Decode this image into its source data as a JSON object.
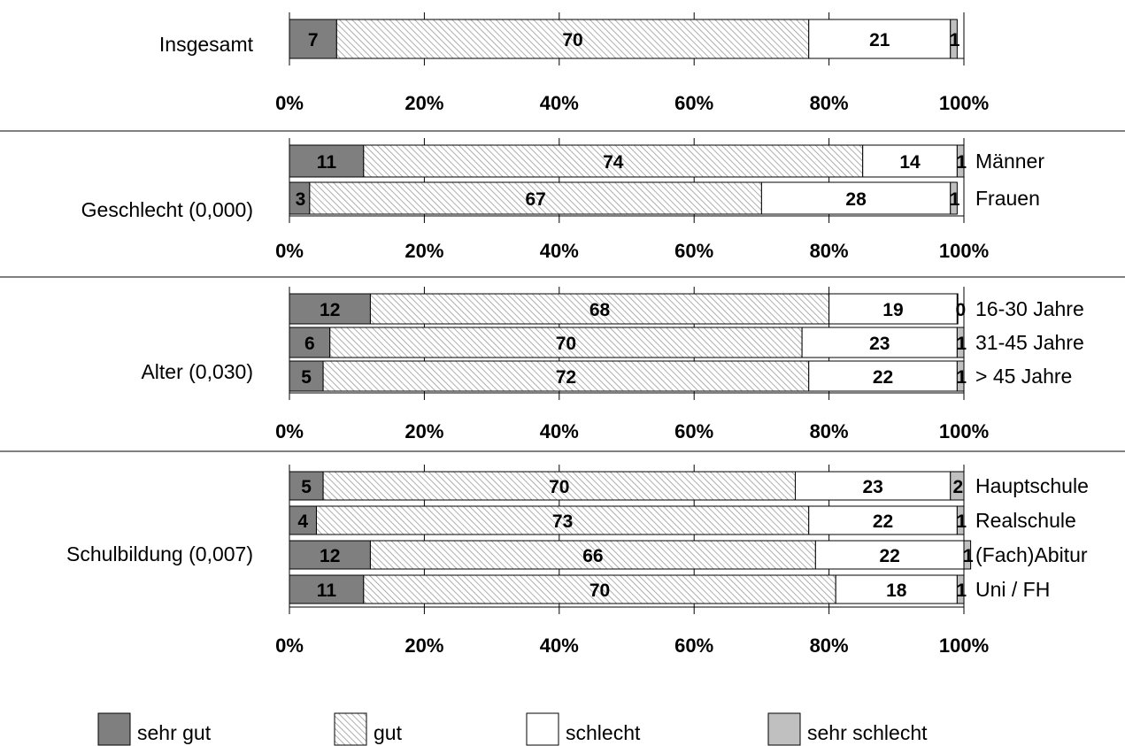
{
  "chart_data": {
    "type": "bar",
    "stacked": "percent",
    "orientation": "horizontal",
    "xlim": [
      0,
      100
    ],
    "x_ticks": [
      "0%",
      "20%",
      "40%",
      "60%",
      "80%",
      "100%"
    ],
    "colors": {
      "sehr gut": "#7f7f7f",
      "gut": "#e2e2e2",
      "schlecht": "#ffffff",
      "sehr schlecht": "#c0c0c0"
    },
    "legend": {
      "placement": "bottom",
      "entries": [
        "sehr gut",
        "gut",
        "schlecht",
        "sehr schlecht"
      ]
    },
    "panels": [
      {
        "group_label": "Insgesamt",
        "rows": [
          {
            "label": "",
            "values": [
              7,
              70,
              21,
              1
            ]
          }
        ]
      },
      {
        "group_label": "Geschlecht (0,000)",
        "rows": [
          {
            "label": "Männer",
            "values": [
              11,
              74,
              14,
              1
            ]
          },
          {
            "label": "Frauen",
            "values": [
              3,
              67,
              28,
              1
            ]
          }
        ]
      },
      {
        "group_label": "Alter (0,030)",
        "rows": [
          {
            "label": "16-30 Jahre",
            "values": [
              12,
              68,
              19,
              0
            ]
          },
          {
            "label": "31-45 Jahre",
            "values": [
              6,
              70,
              23,
              1
            ]
          },
          {
            "label": "> 45 Jahre",
            "values": [
              5,
              72,
              22,
              1
            ]
          }
        ]
      },
      {
        "group_label": "Schulbildung (0,007)",
        "rows": [
          {
            "label": "Hauptschule",
            "values": [
              5,
              70,
              23,
              2
            ]
          },
          {
            "label": "Realschule",
            "values": [
              4,
              73,
              22,
              1
            ]
          },
          {
            "label": "(Fach)Abitur",
            "values": [
              12,
              66,
              22,
              1
            ]
          },
          {
            "label": "Uni / FH",
            "values": [
              11,
              70,
              18,
              1
            ]
          }
        ]
      }
    ]
  }
}
